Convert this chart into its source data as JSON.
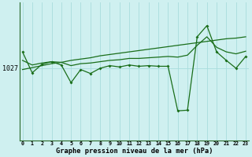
{
  "x": [
    0,
    1,
    2,
    3,
    4,
    5,
    6,
    7,
    8,
    9,
    10,
    11,
    12,
    13,
    14,
    15,
    16,
    17,
    18,
    19,
    20,
    21,
    22,
    23
  ],
  "line_main": [
    1029.5,
    1026.3,
    1027.6,
    1028.0,
    1027.5,
    1024.8,
    1026.8,
    1026.2,
    1027.0,
    1027.4,
    1027.2,
    1027.5,
    1027.3,
    1027.4,
    1027.3,
    1027.3,
    1020.5,
    1020.6,
    1031.8,
    1033.5,
    1029.5,
    1028.2,
    1027.0,
    1028.8
  ],
  "line_smooth": [
    1028.2,
    1027.5,
    1027.8,
    1028.0,
    1027.9,
    1027.4,
    1027.7,
    1027.8,
    1028.0,
    1028.2,
    1028.3,
    1028.5,
    1028.5,
    1028.6,
    1028.7,
    1028.8,
    1028.7,
    1029.0,
    1030.5,
    1031.8,
    1030.2,
    1029.5,
    1029.2,
    1029.6
  ],
  "line_trend": [
    1026.8,
    1027.1,
    1027.4,
    1027.7,
    1027.9,
    1028.2,
    1028.4,
    1028.6,
    1028.9,
    1029.1,
    1029.3,
    1029.5,
    1029.7,
    1029.9,
    1030.1,
    1030.3,
    1030.5,
    1030.7,
    1030.9,
    1031.1,
    1031.3,
    1031.5,
    1031.6,
    1031.8
  ],
  "bg_color": "#cff0f0",
  "grid_color": "#a8dcdc",
  "line_color": "#1a6e1a",
  "xlabel": "Graphe pression niveau de la mer (hPa)",
  "xticks": [
    0,
    1,
    2,
    3,
    4,
    5,
    6,
    7,
    8,
    9,
    10,
    11,
    12,
    13,
    14,
    15,
    16,
    17,
    18,
    19,
    20,
    21,
    22,
    23
  ],
  "ytick_val": 1027,
  "ymin": 1016,
  "ymax": 1037
}
